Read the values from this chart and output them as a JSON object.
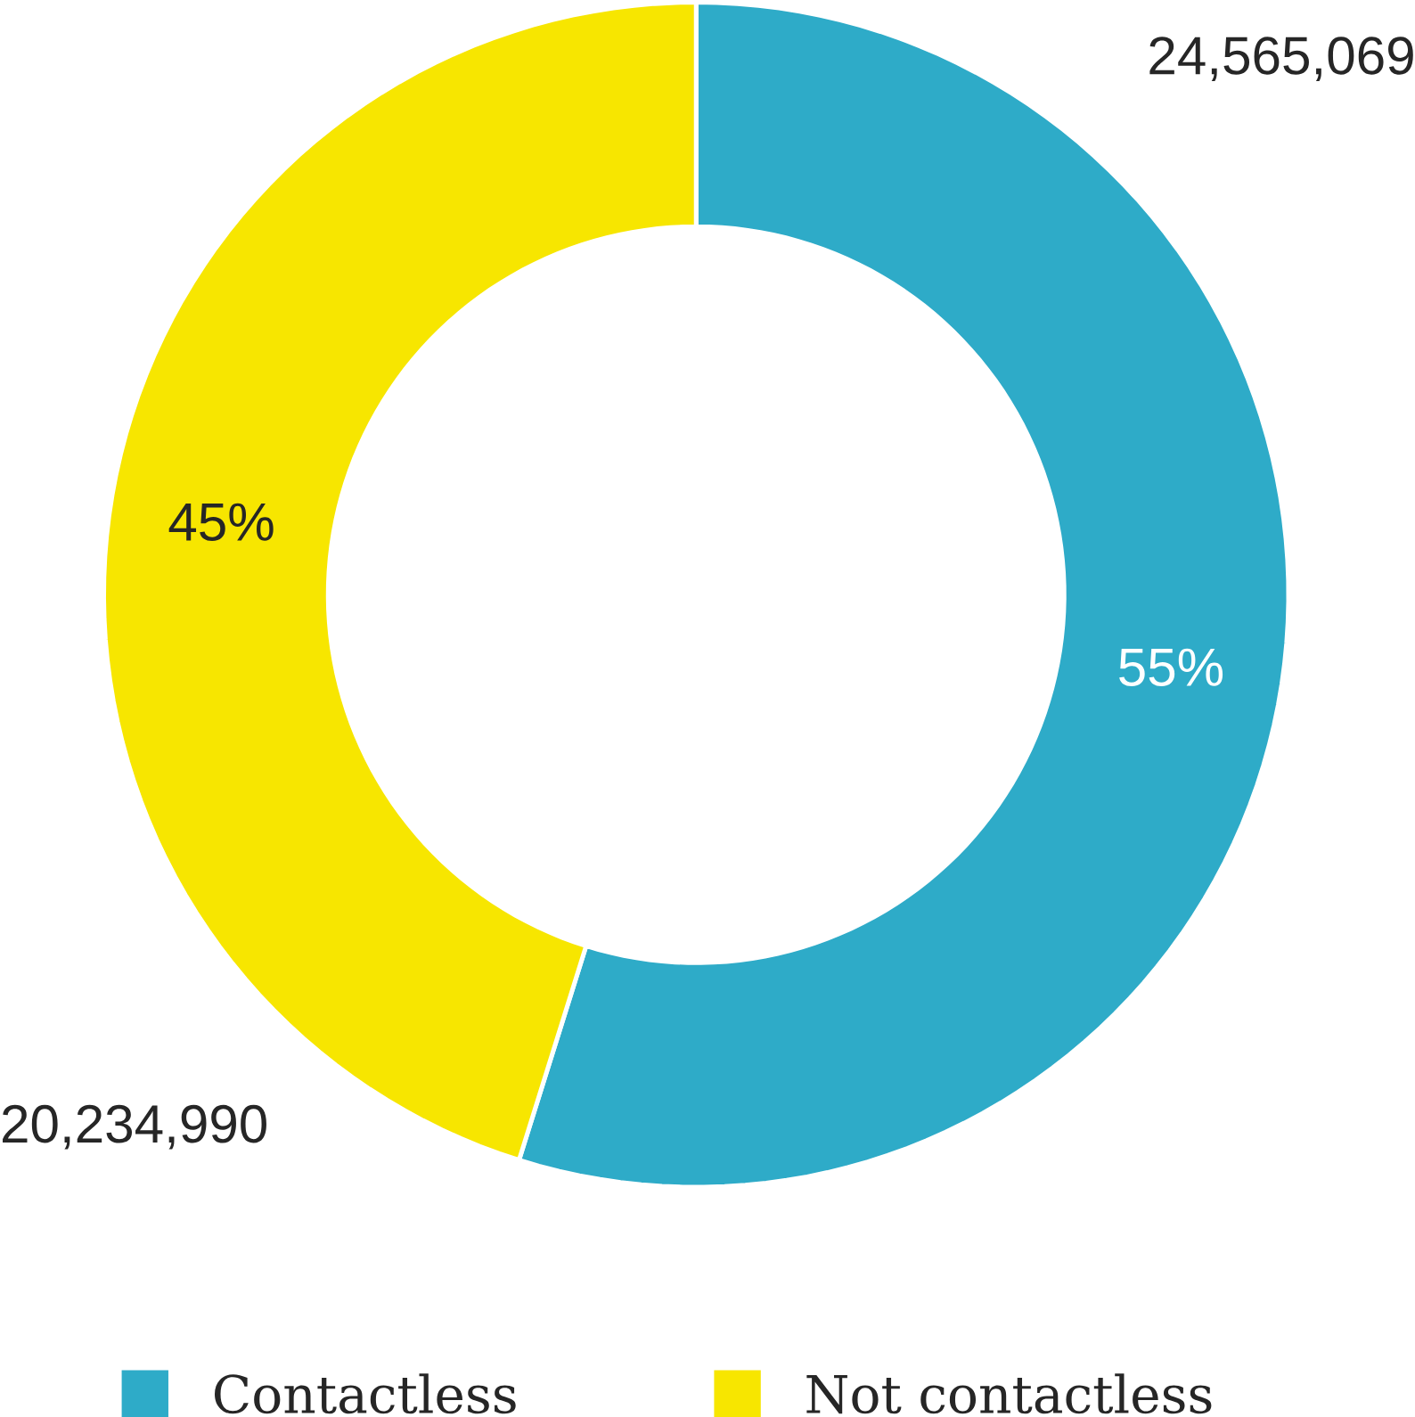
{
  "chart_data": {
    "type": "donut",
    "categories": [
      "Contactless",
      "Not contactless"
    ],
    "values": [
      24565069,
      20234990
    ],
    "colors": [
      "#2eabc8",
      "#f7e600"
    ],
    "value_labels": [
      "24,565,069",
      "20,234,990"
    ],
    "annotations": [
      "55%",
      "45%"
    ],
    "legend": "bottom"
  }
}
